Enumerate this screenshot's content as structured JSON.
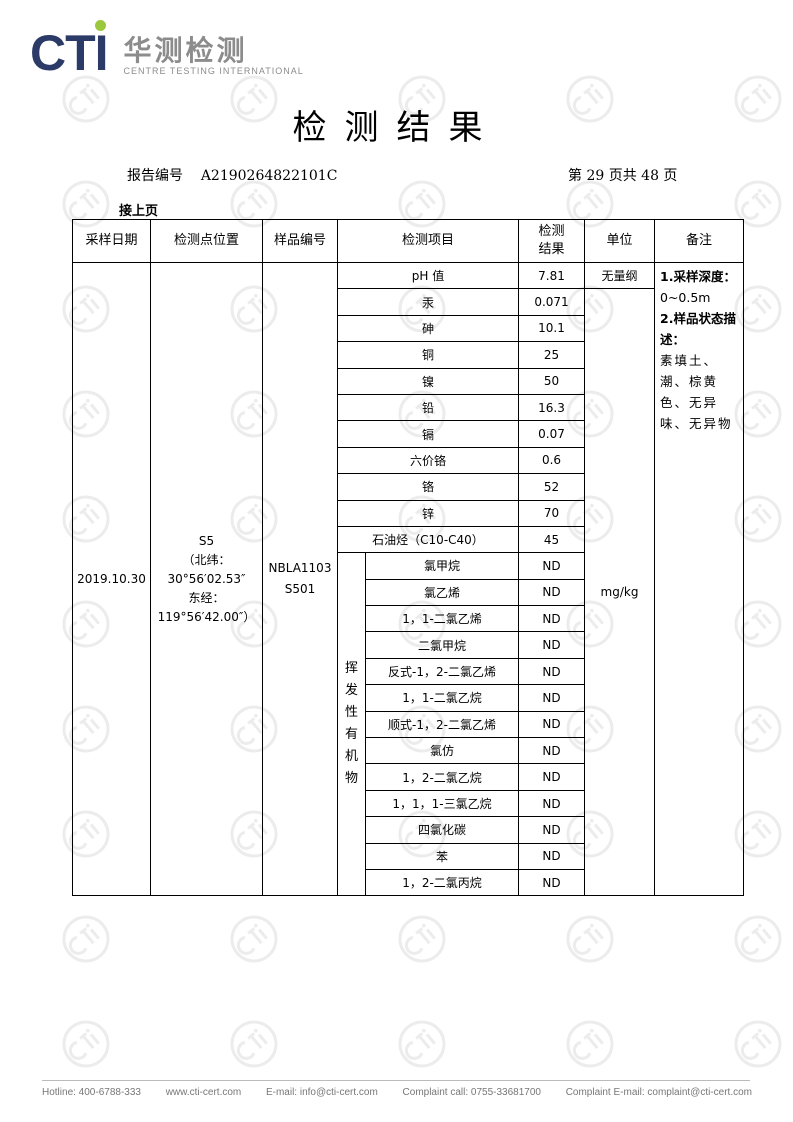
{
  "logo": {
    "brand": "CTI",
    "name_cn": "华测检测",
    "name_en": "CENTRE TESTING INTERNATIONAL",
    "accent": "#2b3a67",
    "dot": "#9bc83c"
  },
  "title": "检测结果",
  "report_no_label": "报告编号",
  "report_no": "A2190264822101C",
  "page_info": "第 29 页共 48 页",
  "continued": "接上页",
  "table": {
    "headers": [
      "采样日期",
      "检测点位置",
      "样品编号",
      "检测项目",
      "检测结果",
      "单位",
      "备注"
    ],
    "date": "2019.10.30",
    "location": [
      "S5",
      "（北纬：",
      "30°56′02.53″",
      "东经：",
      "119°56′42.00″）"
    ],
    "sample_no": [
      "NBLA1103",
      "S501"
    ],
    "unit_ph": "无量纲",
    "unit": "mg/kg",
    "category_voc": "挥发性有机物",
    "rows": [
      {
        "item": "pH 值",
        "result": "7.81"
      },
      {
        "item": "汞",
        "result": "0.071"
      },
      {
        "item": "砷",
        "result": "10.1"
      },
      {
        "item": "铜",
        "result": "25"
      },
      {
        "item": "镍",
        "result": "50"
      },
      {
        "item": "铅",
        "result": "16.3"
      },
      {
        "item": "镉",
        "result": "0.07"
      },
      {
        "item": "六价铬",
        "result": "0.6"
      },
      {
        "item": "铬",
        "result": "52"
      },
      {
        "item": "锌",
        "result": "70"
      },
      {
        "item": "石油烃（C10-C40）",
        "result": "45"
      }
    ],
    "voc_rows": [
      {
        "item": "氯甲烷",
        "result": "ND"
      },
      {
        "item": "氯乙烯",
        "result": "ND"
      },
      {
        "item": "1，1-二氯乙烯",
        "result": "ND"
      },
      {
        "item": "二氯甲烷",
        "result": "ND"
      },
      {
        "item": "反式-1，2-二氯乙烯",
        "result": "ND"
      },
      {
        "item": "1，1-二氯乙烷",
        "result": "ND"
      },
      {
        "item": "顺式-1，2-二氯乙烯",
        "result": "ND"
      },
      {
        "item": "氯仿",
        "result": "ND"
      },
      {
        "item": "1，2-二氯乙烷",
        "result": "ND"
      },
      {
        "item": "1，1，1-三氯乙烷",
        "result": "ND"
      },
      {
        "item": "四氯化碳",
        "result": "ND"
      },
      {
        "item": "苯",
        "result": "ND"
      },
      {
        "item": "1，2-二氯丙烷",
        "result": "ND"
      }
    ],
    "remarks": {
      "h1": "1.采样深度：",
      "depth": "0~0.5m",
      "h2": "2.样品状态描述：",
      "desc": "素填土、潮、棕黄色、无异味、无异物"
    }
  },
  "footer": [
    "Hotline: 400-6788-333",
    "www.cti-cert.com",
    "E-mail: info@cti-cert.com",
    "Complaint call: 0755-33681700",
    "Complaint E-mail: complaint@cti-cert.com"
  ]
}
